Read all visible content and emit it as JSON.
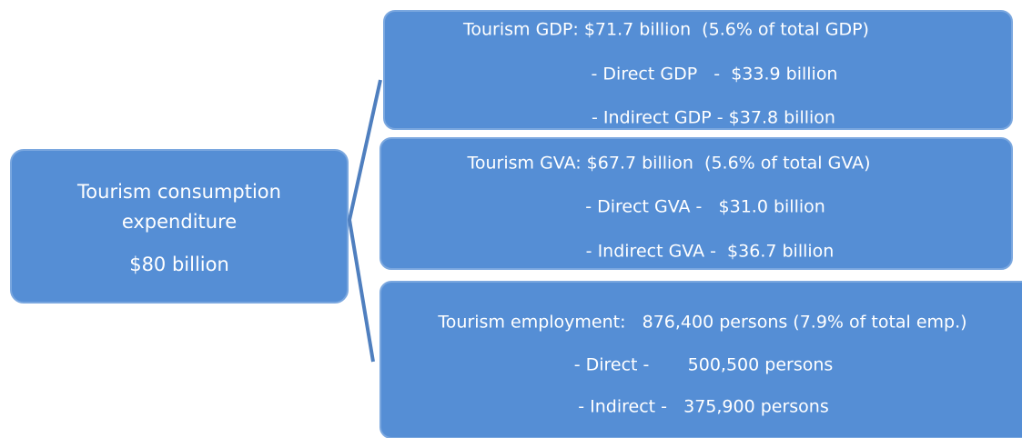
{
  "source": {
    "lines": [
      "Tourism consumption",
      "expenditure",
      "$80 billion"
    ]
  },
  "targets": [
    {
      "lines": [
        "Tourism GDP: $71.7 billion  (5.6% of total GDP)",
        "- Direct GDP   -  $33.9 billion",
        "- Indirect GDP - $37.8 billion"
      ]
    },
    {
      "lines": [
        "Tourism GVA: $67.7 billion  (5.6% of total GVA)",
        "- Direct GVA -   $31.0 billion",
        "- Indirect GVA -  $36.7 billion"
      ]
    },
    {
      "lines": [
        "Tourism employment:   876,400 persons (7.9% of total emp.)",
        "- Direct -       500,500 persons",
        "- Indirect -   375,900 persons"
      ]
    }
  ]
}
